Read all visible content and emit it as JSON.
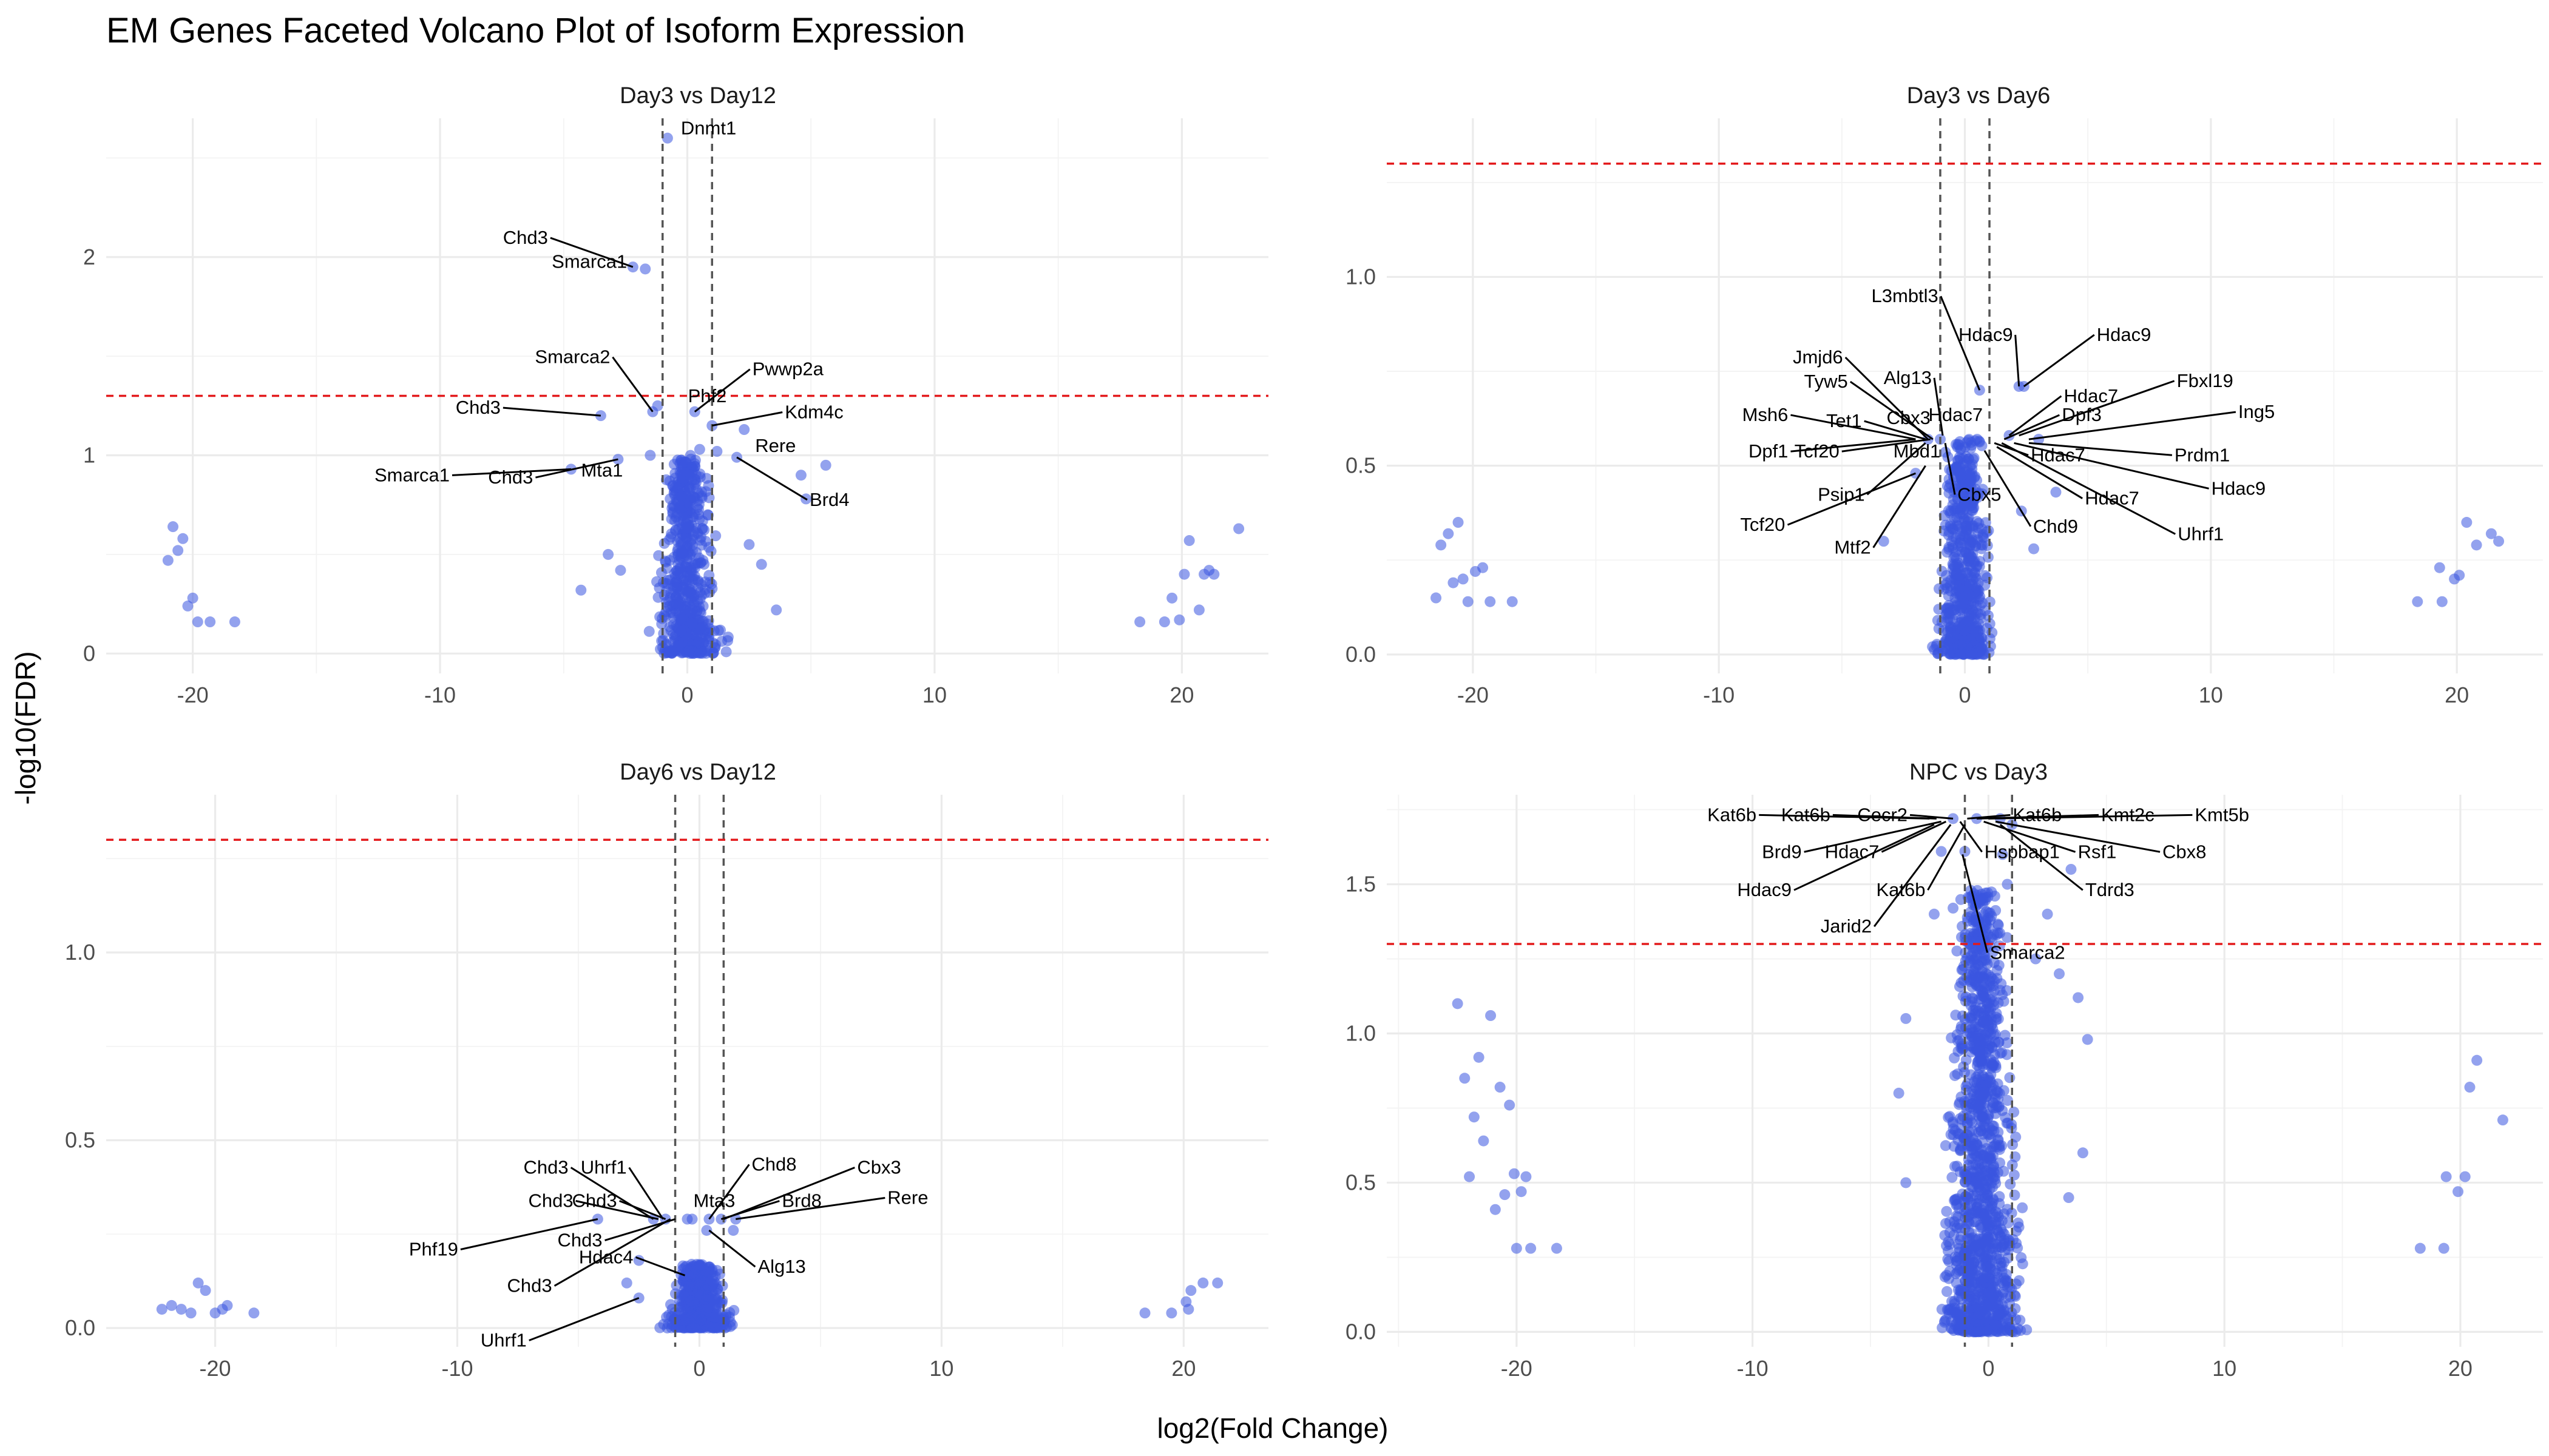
{
  "title": "EM Genes Faceted Volcano Plot of Isoform Expression",
  "xlabel": "log2(Fold Change)",
  "ylabel": "-log10(FDR)",
  "colors": {
    "point": "#3a55e0",
    "fdr_threshold": "#e31a1c",
    "fc_threshold": "#555555",
    "grid": "#ebebeb"
  },
  "chart_data": [
    {
      "type": "scatter",
      "panel": "Day3 vs Day12",
      "xlim": [
        -23.5,
        23.5
      ],
      "ylim": [
        -0.1,
        2.7
      ],
      "xticks": [
        -20,
        -10,
        0,
        10,
        20
      ],
      "yticks": [
        0,
        1,
        2
      ],
      "fc_threshold": [
        -1,
        1
      ],
      "fdr_threshold": 1.3,
      "points": [
        [
          -21.0,
          0.47
        ],
        [
          -20.8,
          0.64
        ],
        [
          -20.6,
          0.52
        ],
        [
          -20.4,
          0.58
        ],
        [
          -20.2,
          0.24
        ],
        [
          -20.0,
          0.28
        ],
        [
          -19.8,
          0.16
        ],
        [
          -19.3,
          0.16
        ],
        [
          -18.3,
          0.16
        ],
        [
          18.3,
          0.16
        ],
        [
          19.3,
          0.16
        ],
        [
          19.6,
          0.28
        ],
        [
          19.9,
          0.17
        ],
        [
          20.1,
          0.4
        ],
        [
          20.3,
          0.57
        ],
        [
          20.7,
          0.22
        ],
        [
          20.9,
          0.4
        ],
        [
          21.1,
          0.42
        ],
        [
          21.3,
          0.4
        ],
        [
          22.3,
          0.63
        ],
        [
          -0.8,
          2.6
        ],
        [
          -2.2,
          1.95
        ],
        [
          -1.7,
          1.94
        ],
        [
          -1.4,
          1.22
        ],
        [
          -1.2,
          1.25
        ],
        [
          -3.5,
          1.2
        ],
        [
          0.3,
          1.22
        ],
        [
          1.0,
          1.15
        ],
        [
          2.3,
          1.13
        ],
        [
          -4.7,
          0.93
        ],
        [
          -2.8,
          0.98
        ],
        [
          -1.5,
          1.0
        ],
        [
          0.5,
          1.03
        ],
        [
          1.2,
          1.02
        ],
        [
          2.0,
          0.99
        ],
        [
          4.8,
          0.78
        ],
        [
          4.6,
          0.9
        ],
        [
          5.6,
          0.95
        ],
        [
          -3.2,
          0.5
        ],
        [
          -2.7,
          0.42
        ],
        [
          2.5,
          0.55
        ],
        [
          3.0,
          0.45
        ],
        [
          -4.3,
          0.32
        ],
        [
          3.6,
          0.22
        ]
      ],
      "cloud": {
        "x_center": 0,
        "x_spread": 1.7,
        "y_max": 1.0,
        "count": 600
      },
      "labels": [
        {
          "text": "Dnmt1",
          "x": -0.8,
          "y": 2.6
        },
        {
          "text": "Chd3",
          "x": -2.2,
          "y": 1.95
        },
        {
          "text": "Smarca1",
          "x": -1.7,
          "y": 1.94
        },
        {
          "text": "Smarca2",
          "x": -1.4,
          "y": 1.22
        },
        {
          "text": "Pwwp2a",
          "x": 0.3,
          "y": 1.22
        },
        {
          "text": "Chd3",
          "x": -3.5,
          "y": 1.2
        },
        {
          "text": "Phf2",
          "x": -1.2,
          "y": 1.25
        },
        {
          "text": "Kdm4c",
          "x": 1.0,
          "y": 1.15
        },
        {
          "text": "Chd3",
          "x": -2.8,
          "y": 0.98
        },
        {
          "text": "Mta1",
          "x": -1.5,
          "y": 1.0
        },
        {
          "text": "Rere",
          "x": 2.3,
          "y": 1.13
        },
        {
          "text": "Smarca1",
          "x": -4.7,
          "y": 0.93
        },
        {
          "text": "Brd4",
          "x": 2.0,
          "y": 0.99
        }
      ]
    },
    {
      "type": "scatter",
      "panel": "Day3 vs Day6",
      "xlim": [
        -23.5,
        23.5
      ],
      "ylim": [
        -0.05,
        1.42
      ],
      "xticks": [
        -20,
        -10,
        0,
        10,
        20
      ],
      "yticks": [
        0.0,
        0.5,
        1.0
      ],
      "fc_threshold": [
        -1,
        1
      ],
      "fdr_threshold": 1.3,
      "points": [
        [
          -21.5,
          0.15
        ],
        [
          -21.3,
          0.29
        ],
        [
          -21.0,
          0.32
        ],
        [
          -20.8,
          0.19
        ],
        [
          -20.6,
          0.35
        ],
        [
          -20.4,
          0.2
        ],
        [
          -20.2,
          0.14
        ],
        [
          -19.9,
          0.22
        ],
        [
          -19.6,
          0.23
        ],
        [
          -19.3,
          0.14
        ],
        [
          -18.4,
          0.14
        ],
        [
          18.4,
          0.14
        ],
        [
          19.3,
          0.23
        ],
        [
          19.4,
          0.14
        ],
        [
          19.9,
          0.2
        ],
        [
          20.1,
          0.21
        ],
        [
          20.4,
          0.35
        ],
        [
          20.8,
          0.29
        ],
        [
          21.4,
          0.32
        ],
        [
          21.7,
          0.3
        ],
        [
          0.6,
          0.7
        ],
        [
          2.2,
          0.71
        ],
        [
          2.4,
          0.71
        ],
        [
          -1.5,
          0.57
        ],
        [
          -1.0,
          0.57
        ],
        [
          0.5,
          0.57
        ],
        [
          1.8,
          0.58
        ],
        [
          3.0,
          0.57
        ],
        [
          3.7,
          0.43
        ],
        [
          -2.0,
          0.48
        ],
        [
          2.3,
          0.38
        ],
        [
          -3.3,
          0.3
        ],
        [
          2.8,
          0.28
        ]
      ],
      "cloud": {
        "x_center": 0,
        "x_spread": 1.6,
        "y_max": 0.57,
        "count": 600
      },
      "labels": [
        {
          "text": "L3mbtl3",
          "x": 0.6,
          "y": 0.7
        },
        {
          "text": "Hdac9",
          "x": 2.2,
          "y": 0.71
        },
        {
          "text": "Hdac9",
          "x": 2.4,
          "y": 0.71
        },
        {
          "text": "Jmjd6",
          "x": -1.5,
          "y": 0.57
        },
        {
          "text": "Alg13",
          "x": -0.9,
          "y": 0.58
        },
        {
          "text": "Hdac7",
          "x": 1.8,
          "y": 0.58
        },
        {
          "text": "Fbxl19",
          "x": 2.2,
          "y": 0.58
        },
        {
          "text": "Tyw5",
          "x": -1.3,
          "y": 0.57
        },
        {
          "text": "Msh6",
          "x": -2.0,
          "y": 0.57
        },
        {
          "text": "Tet1",
          "x": -1.6,
          "y": 0.57
        },
        {
          "text": "Cbx3",
          "x": -1.1,
          "y": 0.57
        },
        {
          "text": "Hdac7",
          "x": 1.1,
          "y": 0.57
        },
        {
          "text": "Dpf3",
          "x": 1.6,
          "y": 0.57
        },
        {
          "text": "Ing5",
          "x": 2.6,
          "y": 0.57
        },
        {
          "text": "Dpf1",
          "x": -2.0,
          "y": 0.57
        },
        {
          "text": "Tcf20",
          "x": -1.4,
          "y": 0.57
        },
        {
          "text": "Mbd1",
          "x": -0.5,
          "y": 0.57
        },
        {
          "text": "Hdac7",
          "x": 1.2,
          "y": 0.56
        },
        {
          "text": "Prdm1",
          "x": 2.6,
          "y": 0.56
        },
        {
          "text": "Tcf20",
          "x": -2.0,
          "y": 0.48
        },
        {
          "text": "Psip1",
          "x": -1.6,
          "y": 0.56
        },
        {
          "text": "Cbx5",
          "x": -0.8,
          "y": 0.56
        },
        {
          "text": "Hdac7",
          "x": 1.3,
          "y": 0.55
        },
        {
          "text": "Hdac9",
          "x": 2.0,
          "y": 0.56
        },
        {
          "text": "Mtf2",
          "x": -1.6,
          "y": 0.5
        },
        {
          "text": "Chd9",
          "x": 0.8,
          "y": 0.54
        },
        {
          "text": "Uhrf1",
          "x": 1.5,
          "y": 0.56
        }
      ]
    },
    {
      "type": "scatter",
      "panel": "Day6 vs Day12",
      "xlim": [
        -24.5,
        23.5
      ],
      "ylim": [
        -0.05,
        1.42
      ],
      "xticks": [
        -20,
        -10,
        0,
        10,
        20
      ],
      "yticks": [
        0.0,
        0.5,
        1.0
      ],
      "fc_threshold": [
        -1,
        1
      ],
      "fdr_threshold": 1.3,
      "points": [
        [
          -22.2,
          0.05
        ],
        [
          -21.8,
          0.06
        ],
        [
          -21.4,
          0.05
        ],
        [
          -21.0,
          0.04
        ],
        [
          -20.7,
          0.12
        ],
        [
          -20.4,
          0.1
        ],
        [
          -20.0,
          0.04
        ],
        [
          -19.7,
          0.05
        ],
        [
          -19.5,
          0.06
        ],
        [
          -18.4,
          0.04
        ],
        [
          18.4,
          0.04
        ],
        [
          19.5,
          0.04
        ],
        [
          20.1,
          0.07
        ],
        [
          20.2,
          0.05
        ],
        [
          20.3,
          0.1
        ],
        [
          20.8,
          0.12
        ],
        [
          21.4,
          0.12
        ],
        [
          -1.9,
          0.29
        ],
        [
          -1.4,
          0.29
        ],
        [
          -0.5,
          0.29
        ],
        [
          -0.3,
          0.29
        ],
        [
          0.4,
          0.29
        ],
        [
          0.9,
          0.29
        ],
        [
          1.5,
          0.29
        ],
        [
          -4.2,
          0.29
        ],
        [
          -3.0,
          0.12
        ],
        [
          -2.5,
          0.08
        ],
        [
          0.3,
          0.26
        ],
        [
          1.4,
          0.26
        ],
        [
          -0.6,
          0.14
        ],
        [
          -2.5,
          0.18
        ]
      ],
      "cloud": {
        "x_center": 0,
        "x_spread": 1.8,
        "y_max": 0.17,
        "count": 500
      },
      "labels": [
        {
          "text": "Chd3",
          "x": -1.9,
          "y": 0.29
        },
        {
          "text": "Uhrf1",
          "x": -1.5,
          "y": 0.29
        },
        {
          "text": "Chd8",
          "x": 0.4,
          "y": 0.29
        },
        {
          "text": "Cbx3",
          "x": 1.0,
          "y": 0.29
        },
        {
          "text": "Chd3",
          "x": -1.7,
          "y": 0.29
        },
        {
          "text": "Chd3",
          "x": -1.4,
          "y": 0.29
        },
        {
          "text": "Mta3",
          "x": -0.5,
          "y": 0.29
        },
        {
          "text": "Brd8",
          "x": 0.9,
          "y": 0.29
        },
        {
          "text": "Rere",
          "x": 1.5,
          "y": 0.29
        },
        {
          "text": "Phf19",
          "x": -4.2,
          "y": 0.29
        },
        {
          "text": "Chd3",
          "x": -1.0,
          "y": 0.29
        },
        {
          "text": "Alg13",
          "x": 0.4,
          "y": 0.26
        },
        {
          "text": "Chd3",
          "x": -1.2,
          "y": 0.29
        },
        {
          "text": "Hdac4",
          "x": -0.6,
          "y": 0.14
        },
        {
          "text": "Uhrf1",
          "x": -2.5,
          "y": 0.08
        }
      ]
    },
    {
      "type": "scatter",
      "panel": "NPC vs Day3",
      "xlim": [
        -25.5,
        23.5
      ],
      "ylim": [
        -0.05,
        1.8
      ],
      "xticks": [
        -20,
        -10,
        0,
        10,
        20
      ],
      "yticks": [
        0.0,
        0.5,
        1.0,
        1.5
      ],
      "fc_threshold": [
        -1,
        1
      ],
      "fdr_threshold": 1.3,
      "points": [
        [
          -22.5,
          1.1
        ],
        [
          -22.2,
          0.85
        ],
        [
          -22.0,
          0.52
        ],
        [
          -21.8,
          0.72
        ],
        [
          -21.6,
          0.92
        ],
        [
          -21.4,
          0.64
        ],
        [
          -21.1,
          1.06
        ],
        [
          -20.9,
          0.41
        ],
        [
          -20.7,
          0.82
        ],
        [
          -20.5,
          0.46
        ],
        [
          -20.3,
          0.76
        ],
        [
          -20.1,
          0.53
        ],
        [
          -20.0,
          0.28
        ],
        [
          -19.8,
          0.47
        ],
        [
          -19.6,
          0.52
        ],
        [
          -19.4,
          0.28
        ],
        [
          -18.3,
          0.28
        ],
        [
          18.3,
          0.28
        ],
        [
          19.3,
          0.28
        ],
        [
          19.4,
          0.52
        ],
        [
          19.9,
          0.47
        ],
        [
          20.2,
          0.52
        ],
        [
          20.4,
          0.82
        ],
        [
          20.7,
          0.91
        ],
        [
          21.8,
          0.71
        ],
        [
          -1.5,
          1.72
        ],
        [
          -0.5,
          1.72
        ],
        [
          0.5,
          1.72
        ],
        [
          1.0,
          1.7
        ],
        [
          -2.0,
          1.61
        ],
        [
          -1.0,
          1.61
        ],
        [
          0.6,
          1.6
        ],
        [
          -2.3,
          1.4
        ],
        [
          -1.5,
          1.42
        ],
        [
          -0.5,
          1.38
        ],
        [
          0.8,
          1.5
        ],
        [
          2.5,
          1.4
        ],
        [
          3.5,
          1.55
        ],
        [
          2.0,
          1.25
        ],
        [
          3.0,
          1.2
        ],
        [
          3.8,
          1.12
        ],
        [
          -3.5,
          1.05
        ],
        [
          4.2,
          0.98
        ],
        [
          -3.8,
          0.8
        ],
        [
          4.0,
          0.6
        ],
        [
          -3.5,
          0.5
        ],
        [
          3.4,
          0.45
        ]
      ],
      "cloud": {
        "x_center": -0.3,
        "x_spread": 2.3,
        "y_max": 1.48,
        "count": 1300
      },
      "labels": [
        {
          "text": "Kat6b",
          "x": -2.5,
          "y": 1.72
        },
        {
          "text": "Kat6b",
          "x": -2.2,
          "y": 1.72
        },
        {
          "text": "Cecr2",
          "x": -1.5,
          "y": 1.72
        },
        {
          "text": "Kat6b",
          "x": -0.9,
          "y": 1.72
        },
        {
          "text": "Kmt2c",
          "x": -0.5,
          "y": 1.72
        },
        {
          "text": "Kmt5b",
          "x": 0.0,
          "y": 1.72
        },
        {
          "text": "Brd9",
          "x": -2.0,
          "y": 1.71
        },
        {
          "text": "Hdac7",
          "x": -1.8,
          "y": 1.71
        },
        {
          "text": "Hspbap1",
          "x": -1.2,
          "y": 1.71
        },
        {
          "text": "Rsf1",
          "x": -0.2,
          "y": 1.71
        },
        {
          "text": "Cbx8",
          "x": 0.3,
          "y": 1.71
        },
        {
          "text": "Hdac9",
          "x": -2.3,
          "y": 1.7
        },
        {
          "text": "Kat6b",
          "x": -1.0,
          "y": 1.7
        },
        {
          "text": "Tdrd3",
          "x": 0.5,
          "y": 1.7
        },
        {
          "text": "Jarid2",
          "x": -1.6,
          "y": 1.7
        },
        {
          "text": "Smarca2",
          "x": -1.1,
          "y": 1.6
        }
      ]
    }
  ]
}
